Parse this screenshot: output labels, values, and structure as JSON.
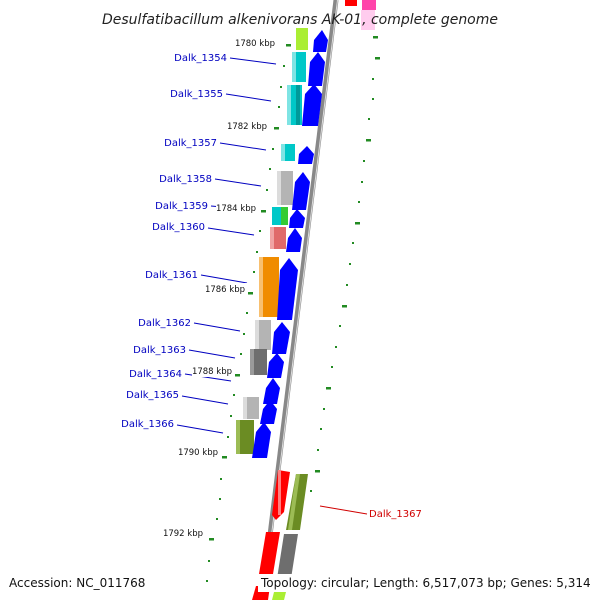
{
  "map": {
    "title": "Desulfatibacillum alkenivorans AK-01, complete genome",
    "accession": "Accession: NC_011768",
    "topology": "Topology: circular; Length: 6,517,073 bp; Genes: 5,314",
    "highlighted_gene": "Dalk_1367"
  },
  "scale": {
    "labels": [
      "1780 kbp",
      "1782 kbp",
      "1784 kbp",
      "1786 kbp",
      "1788 kbp",
      "1790 kbp",
      "1792 kbp"
    ]
  },
  "genes": [
    {
      "name": "Dalk_1354",
      "color": "#00c8c8",
      "strand": "-"
    },
    {
      "name": "Dalk_1355",
      "color": "#00c8c8",
      "strand": "-"
    },
    {
      "name": "Dalk_1357",
      "color": "#00c8c8",
      "strand": "-"
    },
    {
      "name": "Dalk_1358",
      "color": "#b4b4b4",
      "strand": "-"
    },
    {
      "name": "Dalk_1359",
      "color": "#00c8c8",
      "strand": "-"
    },
    {
      "name": "Dalk_1360",
      "color": "#e06a6a",
      "strand": "-"
    },
    {
      "name": "Dalk_1361",
      "color": "#f08c00",
      "strand": "-"
    },
    {
      "name": "Dalk_1362",
      "color": "#b4b4b4",
      "strand": "-"
    },
    {
      "name": "Dalk_1363",
      "color": "#6e6e6e",
      "strand": "-"
    },
    {
      "name": "Dalk_1364",
      "color": "#1e1eff",
      "strand": "-"
    },
    {
      "name": "Dalk_1365",
      "color": "#b4b4b4",
      "strand": "-"
    },
    {
      "name": "Dalk_1366",
      "color": "#6b8c23",
      "strand": "-"
    },
    {
      "name": "Dalk_1367",
      "color": "#6b8c23",
      "strand": "+"
    }
  ],
  "colors": {
    "backbone": "#888888",
    "cds_blue": "#0000ff",
    "tick_green": "#228b22",
    "label_blue": "#0000c0",
    "label_red": "#d00000",
    "red_block": "#ff0000",
    "pink_block": "#ff44aa",
    "lime_block": "#aaee33",
    "green_block": "#33cc33"
  }
}
